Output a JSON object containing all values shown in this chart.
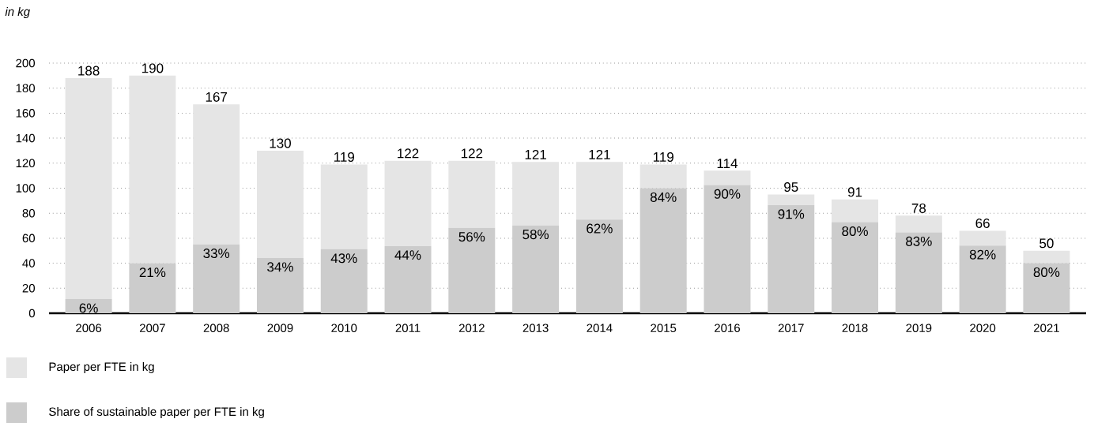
{
  "chart_data": {
    "type": "bar",
    "stacked": true,
    "ylabel": "in kg",
    "categories": [
      "2006",
      "2007",
      "2008",
      "2009",
      "2010",
      "2011",
      "2012",
      "2013",
      "2014",
      "2015",
      "2016",
      "2017",
      "2018",
      "2019",
      "2020",
      "2021"
    ],
    "series": [
      {
        "name": "Share of sustainable paper per FTE in kg",
        "color": "#cccccc",
        "values": [
          11.3,
          39.9,
          55.1,
          44.2,
          51.2,
          53.7,
          68.3,
          70.2,
          75.0,
          100.0,
          102.6,
          86.5,
          72.8,
          64.7,
          54.1,
          40.0
        ]
      },
      {
        "name": "Paper per FTE in kg",
        "color": "#e5e5e5",
        "values": [
          176.7,
          150.1,
          111.9,
          85.8,
          67.8,
          68.3,
          53.7,
          50.8,
          46.0,
          19.0,
          11.4,
          8.5,
          18.2,
          13.3,
          11.9,
          10.0
        ]
      }
    ],
    "annotations": [
      {
        "text": "6%",
        "x": "2006",
        "y": 11.3
      },
      {
        "text": "21%",
        "x": "2007",
        "y": 39.9
      },
      {
        "text": "33%",
        "x": "2008",
        "y": 55.1
      },
      {
        "text": "34%",
        "x": "2009",
        "y": 44.2
      },
      {
        "text": "43%",
        "x": "2010",
        "y": 51.2
      },
      {
        "text": "44%",
        "x": "2011",
        "y": 53.7
      },
      {
        "text": "56%",
        "x": "2012",
        "y": 68.3
      },
      {
        "text": "58%",
        "x": "2013",
        "y": 70.2
      },
      {
        "text": "62%",
        "x": "2014",
        "y": 75.0
      },
      {
        "text": "84%",
        "x": "2015",
        "y": 100.0
      },
      {
        "text": "90%",
        "x": "2016",
        "y": 102.6
      },
      {
        "text": "91%",
        "x": "2017",
        "y": 86.5
      },
      {
        "text": "80%",
        "x": "2018",
        "y": 72.8
      },
      {
        "text": "83%",
        "x": "2019",
        "y": 64.7
      },
      {
        "text": "82%",
        "x": "2020",
        "y": 54.1
      },
      {
        "text": "80%",
        "x": "2021",
        "y": 40.0
      }
    ],
    "totals": [
      "188",
      "190",
      "167",
      "130",
      "119",
      "122",
      "122",
      "121",
      "121",
      "119",
      "114",
      "95",
      "91",
      "78",
      "66",
      "50"
    ],
    "ylim": [
      0,
      200
    ],
    "yticks": [
      0,
      20,
      40,
      60,
      80,
      100,
      120,
      140,
      160,
      180,
      200
    ],
    "grid": "y",
    "legend": "bottom"
  }
}
